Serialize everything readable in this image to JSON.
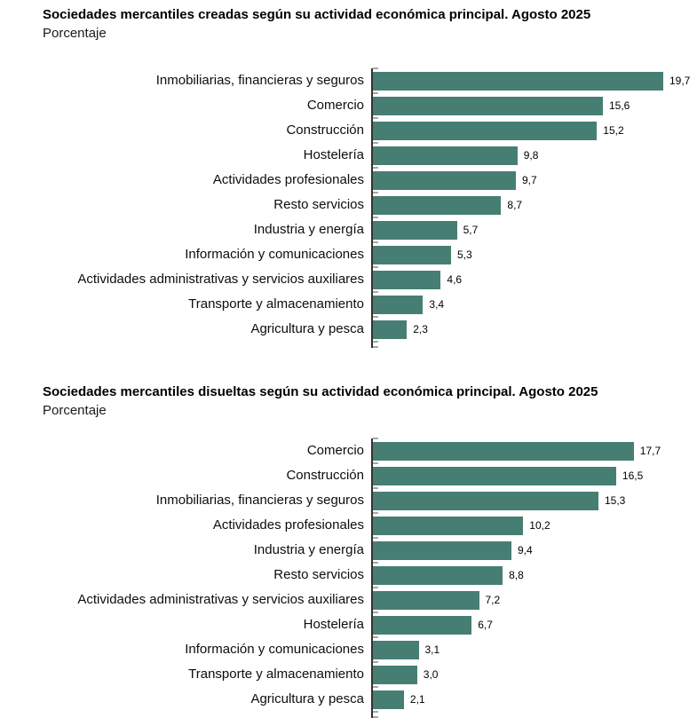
{
  "chart_data": [
    {
      "type": "bar",
      "orientation": "horizontal",
      "title": "Sociedades mercantiles creadas según su actividad económica principal. Agosto 2025",
      "subtitle": "Porcentaje",
      "categories": [
        "Inmobiliarias, financieras y seguros",
        "Comercio",
        "Construcción",
        "Hostelería",
        "Actividades profesionales",
        "Resto servicios",
        "Industria y energía",
        "Información y comunicaciones",
        "Actividades administrativas y servicios auxiliares",
        "Transporte y almacenamiento",
        "Agricultura y pesca"
      ],
      "values": [
        19.7,
        15.6,
        15.2,
        9.8,
        9.7,
        8.7,
        5.7,
        5.3,
        4.6,
        3.4,
        2.3
      ],
      "value_labels": [
        "19,7",
        "15,6",
        "15,2",
        "9,8",
        "9,7",
        "8,7",
        "5,7",
        "5,3",
        "4,6",
        "3,4",
        "2,3"
      ],
      "xlim": [
        0,
        20
      ],
      "grid": false,
      "legend": false,
      "bar_color": "#477E73",
      "axis_color": "#333333",
      "tick_color": "#a8a8a8"
    },
    {
      "type": "bar",
      "orientation": "horizontal",
      "title": "Sociedades mercantiles disueltas según su actividad económica principal. Agosto 2025",
      "subtitle": "Porcentaje",
      "categories": [
        "Comercio",
        "Construcción",
        "Inmobiliarias, financieras y seguros",
        "Actividades profesionales",
        "Industria y energía",
        "Resto servicios",
        "Actividades administrativas y servicios auxiliares",
        "Hostelería",
        "Información y comunicaciones",
        "Transporte y almacenamiento",
        "Agricultura y pesca"
      ],
      "values": [
        17.7,
        16.5,
        15.3,
        10.2,
        9.4,
        8.8,
        7.2,
        6.7,
        3.1,
        3.0,
        2.1
      ],
      "value_labels": [
        "17,7",
        "16,5",
        "15,3",
        "10,2",
        "9,4",
        "8,8",
        "7,2",
        "6,7",
        "3,1",
        "3,0",
        "2,1"
      ],
      "xlim": [
        0,
        20
      ],
      "grid": false,
      "legend": false,
      "bar_color": "#477E73",
      "axis_color": "#333333",
      "tick_color": "#a8a8a8"
    }
  ]
}
